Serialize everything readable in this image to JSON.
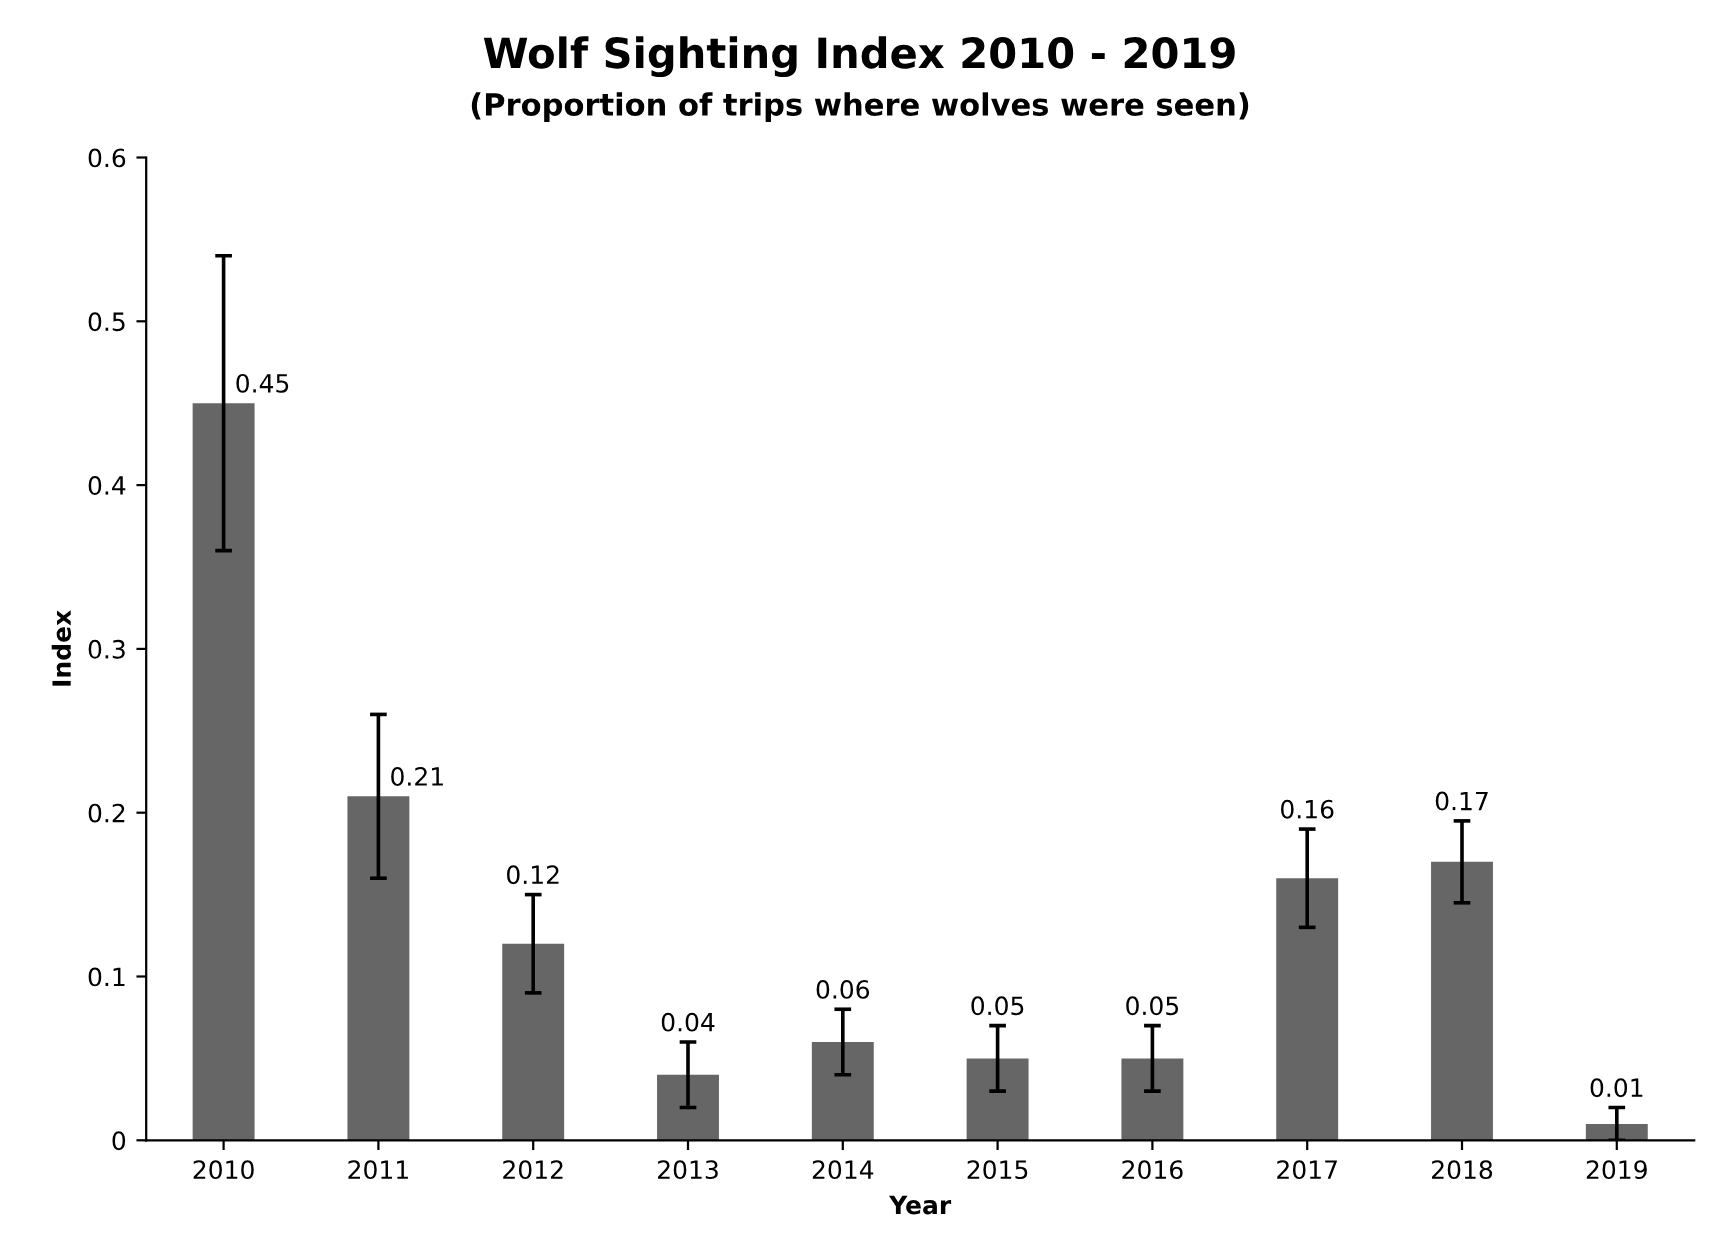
{
  "chart_data": {
    "type": "bar",
    "title": "Wolf Sighting Index 2010 - 2019",
    "subtitle": "(Proportion of trips where wolves were seen)",
    "xlabel": "Year",
    "ylabel": "Index",
    "categories": [
      "2010",
      "2011",
      "2012",
      "2013",
      "2014",
      "2015",
      "2016",
      "2017",
      "2018",
      "2019"
    ],
    "values": [
      0.45,
      0.21,
      0.12,
      0.04,
      0.06,
      0.05,
      0.05,
      0.16,
      0.17,
      0.01
    ],
    "errors": [
      0.09,
      0.05,
      0.03,
      0.02,
      0.02,
      0.02,
      0.02,
      0.03,
      0.025,
      0.01
    ],
    "color": "#666666",
    "ylim": [
      0,
      0.6
    ],
    "yticks": [
      0,
      0.1,
      0.2,
      0.3,
      0.4,
      0.5,
      0.6
    ],
    "data_labels": true,
    "grid": false,
    "legend": false
  }
}
